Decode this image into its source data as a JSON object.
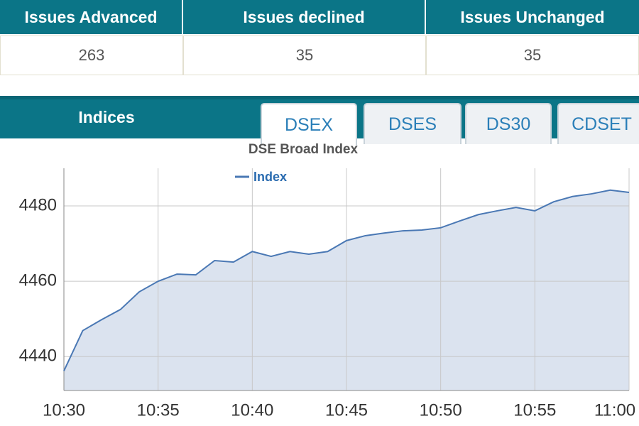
{
  "table": {
    "headers": [
      "Issues Advanced",
      "Issues declined",
      "Issues Unchanged"
    ],
    "values": [
      263,
      35,
      35
    ]
  },
  "tabs": {
    "title": "Indices",
    "items": [
      "DSEX",
      "DSES",
      "DS30",
      "CDSET"
    ]
  },
  "chart_data": {
    "type": "area",
    "title": "DSE Broad Index",
    "categories": [
      "10:30",
      null,
      null,
      null,
      null,
      "10:35",
      null,
      null,
      null,
      null,
      "10:40",
      null,
      null,
      null,
      null,
      "10:45",
      null,
      null,
      null,
      null,
      "10:50",
      null,
      null,
      null,
      null,
      "10:55",
      null,
      null,
      null,
      null,
      "11:00"
    ],
    "series": [
      {
        "name": "Index",
        "color": "#4a78b4",
        "fill": "#dbe3ef",
        "values": [
          4436.2,
          4446.9,
          4449.8,
          4452.5,
          4457.2,
          4460.0,
          4461.9,
          4461.7,
          4465.5,
          4465.1,
          4467.9,
          4466.6,
          4467.9,
          4467.2,
          4467.9,
          4470.8,
          4472.1,
          4472.8,
          4473.4,
          4473.6,
          4474.2,
          4476.0,
          4477.7,
          4478.7,
          4479.6,
          4478.7,
          4481.1,
          4482.5,
          4483.2,
          4484.2,
          4483.6
        ]
      }
    ],
    "ylim": [
      4431,
      4490
    ],
    "yticks": [
      4440,
      4460,
      4480
    ],
    "grid": true
  }
}
